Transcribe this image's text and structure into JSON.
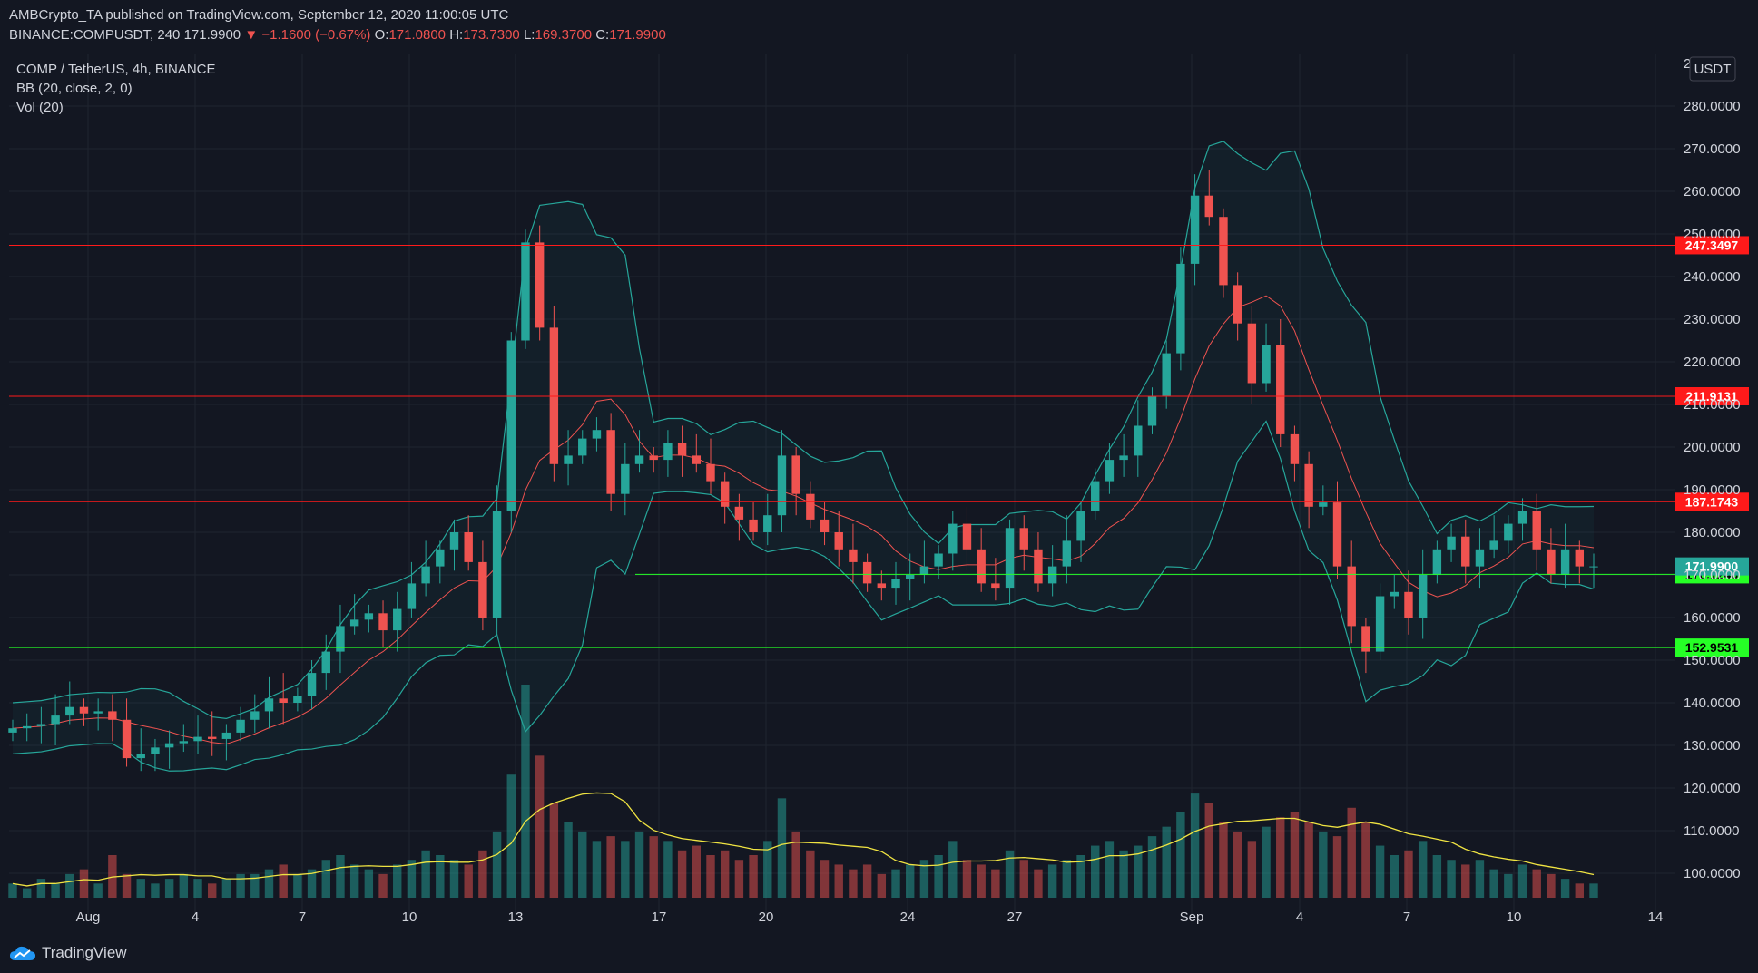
{
  "header": {
    "line1": "AMBCrypto_TA published on TradingView.com, September 12, 2020 11:00:05 UTC",
    "symbol": "BINANCE:COMPUSDT, 240",
    "last": "171.9900",
    "change_arrow": "▼",
    "change": "−1.1600 (−0.67%)",
    "o_label": "O:",
    "o": "171.0800",
    "h_label": "H:",
    "h": "173.7300",
    "l_label": "L:",
    "l": "169.3700",
    "c_label": "C:",
    "c": "171.9900"
  },
  "legend": {
    "title": "COMP / TetherUS, 4h, BINANCE",
    "bb": "BB (20, close, 2, 0)",
    "vol": "Vol (20)"
  },
  "currency": "USDT",
  "branding": "TradingView",
  "colors": {
    "background": "#131722",
    "up": "#26a69a",
    "down": "#ef5350",
    "bb_band": "#26a69a",
    "bb_basis": "#ef5350",
    "vol_ma": "#f0e442",
    "resistance": "#ff1a1a",
    "support": "#26ff26"
  },
  "chart_data": {
    "type": "candlestick",
    "y_ticks": [
      "280.0000",
      "270.0000",
      "260.0000",
      "250.0000",
      "240.0000",
      "230.0000",
      "220.0000",
      "210.0000",
      "200.0000",
      "190.0000",
      "180.0000",
      "170.0000",
      "160.0000",
      "150.0000",
      "140.0000",
      "130.0000",
      "120.0000",
      "110.0000",
      "100.0000"
    ],
    "y_top_partial": "2",
    "ylim": [
      95,
      290
    ],
    "x_ticks": [
      "Aug",
      "4",
      "7",
      "10",
      "13",
      "17",
      "20",
      "24",
      "27",
      "Sep",
      "4",
      "7",
      "10",
      "14"
    ],
    "horizontal_levels": [
      {
        "value": 247.3497,
        "label": "247.3497",
        "kind": "resistance"
      },
      {
        "value": 211.9131,
        "label": "211.9131",
        "kind": "resistance"
      },
      {
        "value": 187.1743,
        "label": "187.1743",
        "kind": "resistance"
      },
      {
        "value": 170.1246,
        "label": "170.1246",
        "kind": "support"
      },
      {
        "value": 152.9531,
        "label": "152.9531",
        "kind": "support"
      }
    ],
    "last_price": {
      "value": 171.99,
      "label": "171.9900"
    },
    "close_series": [
      134.0,
      134.5,
      135.0,
      137.0,
      139.0,
      137.5,
      138.0,
      136.0,
      127.0,
      128.0,
      129.5,
      130.5,
      131.0,
      132.0,
      131.5,
      133.0,
      136.0,
      138.0,
      141.0,
      140.0,
      141.5,
      147.0,
      152.0,
      158.0,
      159.5,
      161.0,
      157.0,
      162.0,
      168.0,
      172.0,
      176.0,
      180.0,
      173.0,
      160.0,
      185.0,
      225.0,
      248.0,
      228.0,
      196.0,
      198.0,
      202.0,
      204.0,
      189.0,
      196.0,
      198.0,
      197.0,
      201.0,
      198.0,
      196.0,
      192.0,
      186.0,
      183.0,
      180.0,
      184.0,
      198.0,
      189.0,
      183.0,
      180.0,
      176.0,
      173.0,
      168.0,
      167.0,
      169.0,
      170.0,
      172.0,
      175.0,
      182.0,
      176.0,
      168.0,
      167.0,
      181.0,
      176.0,
      168.0,
      172.0,
      178.0,
      185.0,
      192.0,
      197.0,
      198.0,
      205.0,
      212.0,
      222.0,
      243.0,
      259.0,
      254.0,
      238.0,
      229.0,
      215.0,
      224.0,
      203.0,
      196.0,
      186.0,
      187.0,
      172.0,
      158.0,
      152.0,
      165.0,
      166.0,
      160.0,
      170.0,
      176.0,
      179.0,
      172.0,
      176.0,
      178.0,
      182.0,
      185.0,
      176.0,
      170.0,
      176.0,
      172.0,
      172.0
    ],
    "volume_series": [
      3,
      2,
      4,
      3,
      5,
      6,
      3,
      9,
      5,
      4,
      3,
      4,
      5,
      4,
      3,
      4,
      5,
      5,
      6,
      7,
      5,
      6,
      8,
      9,
      7,
      6,
      5,
      7,
      8,
      10,
      9,
      8,
      7,
      10,
      14,
      26,
      45,
      30,
      20,
      16,
      14,
      12,
      13,
      12,
      14,
      13,
      12,
      10,
      11,
      9,
      10,
      8,
      9,
      12,
      21,
      14,
      10,
      8,
      7,
      6,
      7,
      5,
      6,
      7,
      8,
      9,
      12,
      8,
      7,
      6,
      10,
      8,
      6,
      7,
      8,
      9,
      11,
      12,
      10,
      11,
      13,
      15,
      18,
      22,
      20,
      16,
      14,
      12,
      15,
      17,
      18,
      16,
      14,
      13,
      19,
      16,
      11,
      9,
      10,
      12,
      9,
      8,
      7,
      8,
      6,
      5,
      7,
      6,
      5,
      4,
      3,
      3
    ],
    "series": [
      {
        "name": "BB (20, close, 2, 0)"
      },
      {
        "name": "Vol (20)"
      }
    ]
  }
}
